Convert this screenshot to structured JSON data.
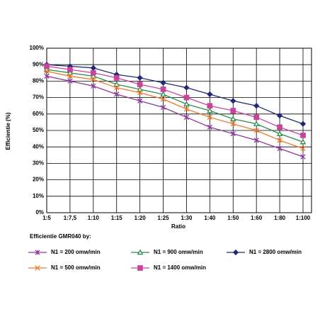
{
  "chart_data": {
    "type": "line",
    "y_label": "Efficientie (%)",
    "x_label": "Ratio",
    "legend_title": "Efficientie GMR040 by:",
    "categories": [
      "1:5",
      "1:7,5",
      "1:10",
      "1:15",
      "1:20",
      "1:25",
      "1:30",
      "1:40",
      "1:50",
      "1:60",
      "1:80",
      "1:100"
    ],
    "ylim": [
      0,
      100
    ],
    "yticks": [
      {
        "value": 0,
        "label": "0%"
      },
      {
        "value": 10,
        "label": "10%"
      },
      {
        "value": 20,
        "label": "20%"
      },
      {
        "value": 30,
        "label": "30%"
      },
      {
        "value": 40,
        "label": "40%"
      },
      {
        "value": 50,
        "label": "50%"
      },
      {
        "value": 60,
        "label": "60%"
      },
      {
        "value": 70,
        "label": "70%"
      },
      {
        "value": 80,
        "label": "80%"
      },
      {
        "value": 90,
        "label": "90%"
      },
      {
        "value": 100,
        "label": "100%"
      }
    ],
    "grid": true,
    "legend": "bottom",
    "series": [
      {
        "name": "N1 = 200 omw/min",
        "color": "#8b3a9c",
        "marker": "asterisk",
        "values": [
          83,
          80,
          77,
          72,
          68,
          64,
          58,
          52,
          48,
          44,
          39,
          34
        ]
      },
      {
        "name": "N1 = 900 omw/min",
        "color": "#2e8b4a",
        "marker": "triangle",
        "values": [
          87,
          85,
          83,
          78,
          75,
          72,
          66,
          62,
          57,
          54,
          48,
          43
        ]
      },
      {
        "name": "N1 = 2800 omw/min",
        "color": "#1f2a78",
        "marker": "diamond",
        "values": [
          90,
          89,
          88,
          84,
          82,
          79,
          76,
          72,
          68,
          65,
          59,
          54
        ]
      },
      {
        "name": "N1 = 500 omw/min",
        "color": "#f07a2a",
        "marker": "cross",
        "values": [
          86,
          83,
          81,
          76,
          73,
          69,
          63,
          58,
          54,
          50,
          44,
          39
        ]
      },
      {
        "name": "N1 = 1400 omw/min",
        "color": "#c8449c",
        "marker": "square",
        "values": [
          89,
          87,
          85,
          82,
          78,
          75,
          70,
          65,
          62,
          58,
          52,
          47
        ]
      }
    ]
  }
}
